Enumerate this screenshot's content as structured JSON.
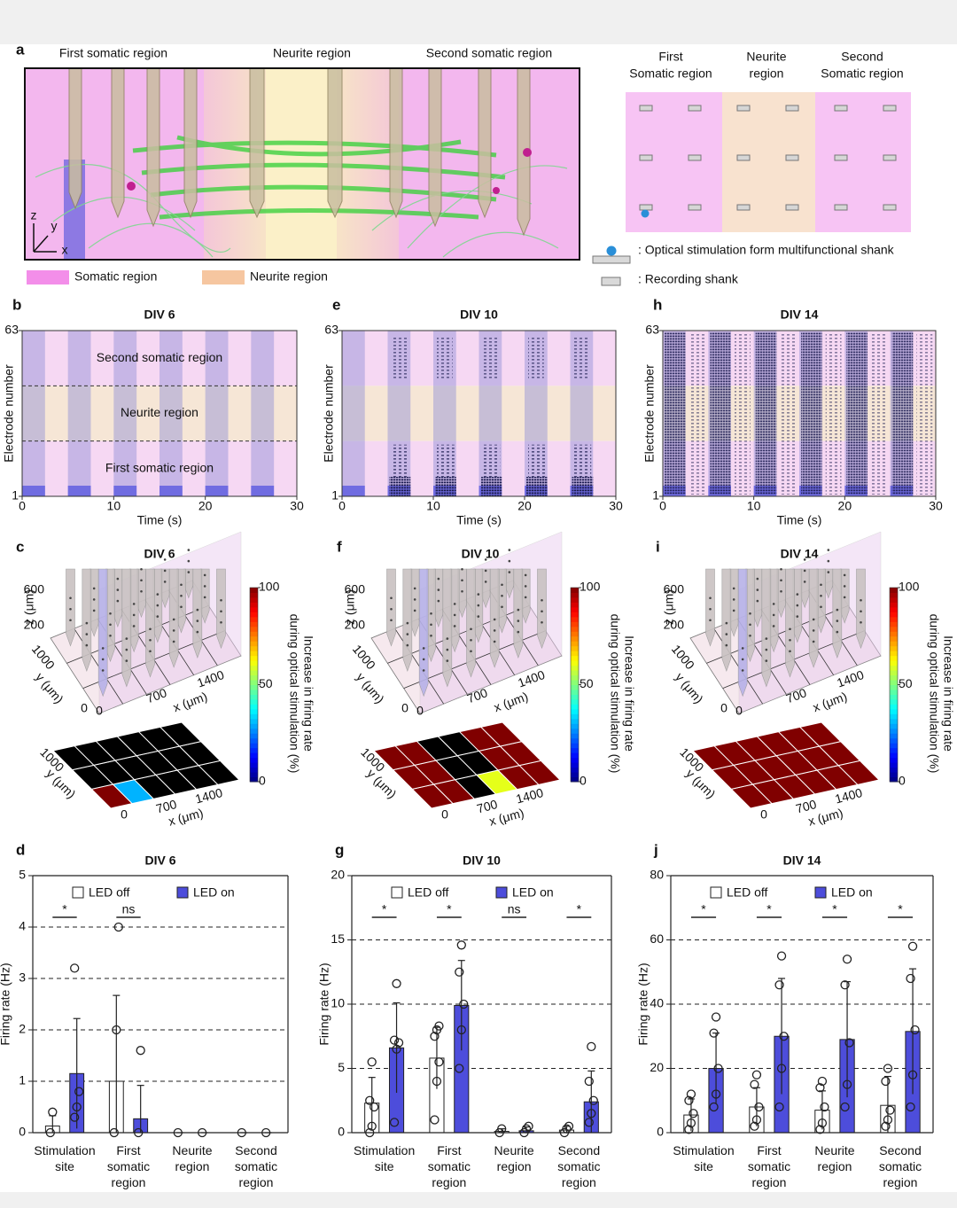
{
  "panel_a": {
    "letter": "a",
    "region_titles": [
      "First somatic region",
      "Neurite region",
      "Second somatic region"
    ],
    "axis_letters": [
      "z",
      "y",
      "x"
    ],
    "legend": [
      "Somatic region",
      "Neurite region"
    ],
    "schematic_titles": [
      [
        "First",
        "Somatic region"
      ],
      [
        "Neurite",
        "region"
      ],
      [
        "Second",
        "Somatic region"
      ]
    ],
    "schematic_legend": [
      ": Optical stimulation form multifunctional shank",
      ": Recording shank"
    ]
  },
  "rasters": [
    {
      "letter": "b",
      "title": "DIV 6",
      "ylabel": "Electrode number",
      "xlabel": "Time (s)",
      "xlim": [
        0,
        30
      ],
      "xticks": [
        0,
        10,
        20,
        30
      ],
      "ylim": [
        1,
        63
      ],
      "yticks": [
        1,
        63
      ],
      "region_labels": [
        "Second somatic region",
        "Neurite region",
        "First somatic region"
      ]
    },
    {
      "letter": "e",
      "title": "DIV 10",
      "ylabel": "Electrode number",
      "xlabel": "Time (s)",
      "xlim": [
        0,
        30
      ],
      "xticks": [
        0,
        10,
        20,
        30
      ],
      "ylim": [
        1,
        63
      ],
      "yticks": [
        1,
        63
      ]
    },
    {
      "letter": "h",
      "title": "DIV 14",
      "ylabel": "Electrode number",
      "xlabel": "Time (s)",
      "xlim": [
        0,
        30
      ],
      "xticks": [
        0,
        10,
        20,
        30
      ],
      "ylim": [
        1,
        63
      ],
      "yticks": [
        1,
        63
      ]
    }
  ],
  "maps": [
    {
      "letter": "c",
      "title": "DIV 6",
      "zlabel": "z (μm)",
      "zticks": [
        600,
        200
      ],
      "ylabel": "y (μm)",
      "yticks": [
        1000,
        0
      ],
      "xlabel": "x (μm)",
      "xticks": [
        0,
        700,
        1400
      ],
      "cbar_label": [
        "Increase in firing rate",
        "during optical stimulation (%)"
      ],
      "clim": [
        0,
        100
      ],
      "cticks": [
        0,
        50,
        100
      ],
      "heatmap": [
        [
          100,
          30,
          null,
          null,
          null,
          null
        ],
        [
          null,
          null,
          null,
          null,
          null,
          null
        ],
        [
          null,
          null,
          null,
          null,
          null,
          null
        ]
      ]
    },
    {
      "letter": "f",
      "title": "DIV 10",
      "zlabel": "z (μm)",
      "zticks": [
        600,
        200
      ],
      "ylabel": "y (μm)",
      "yticks": [
        1000,
        0
      ],
      "xlabel": "x (μm)",
      "xticks": [
        0,
        700,
        1400
      ],
      "cbar_label": [
        "Increase in firing rate",
        "during optical stimulation (%)"
      ],
      "clim": [
        0,
        100
      ],
      "cticks": [
        0,
        50,
        100
      ],
      "heatmap": [
        [
          100,
          100,
          null,
          60,
          100,
          100
        ],
        [
          100,
          100,
          null,
          null,
          100,
          100
        ],
        [
          100,
          100,
          null,
          null,
          100,
          100
        ]
      ]
    },
    {
      "letter": "i",
      "title": "DIV 14",
      "zlabel": "z (μm)",
      "zticks": [
        600,
        200
      ],
      "ylabel": "y (μm)",
      "yticks": [
        1000,
        0
      ],
      "xlabel": "x (μm)",
      "xticks": [
        0,
        700,
        1400
      ],
      "cbar_label": [
        "Increase in firing rate",
        "during optical stimulation (%)"
      ],
      "clim": [
        0,
        100
      ],
      "cticks": [
        0,
        50,
        100
      ],
      "heatmap": [
        [
          100,
          100,
          100,
          100,
          100,
          100
        ],
        [
          100,
          100,
          100,
          100,
          100,
          100
        ],
        [
          100,
          100,
          100,
          100,
          100,
          100
        ]
      ]
    }
  ],
  "chart_data": [
    {
      "type": "bar",
      "letter": "d",
      "title": "DIV 6",
      "ylabel": "Firing rate (Hz)",
      "categories": [
        "Stimulation site",
        "First somatic region",
        "Neurite region",
        "Second somatic region"
      ],
      "ylim": [
        0,
        5
      ],
      "yticks": [
        0,
        1,
        2,
        3,
        4,
        5
      ],
      "grid": true,
      "series": [
        {
          "name": "LED off",
          "color": "#ffffff",
          "values": [
            0.13,
            1.0,
            0,
            0
          ],
          "errors": [
            0.2,
            1.67,
            0,
            0
          ],
          "points": [
            [
              0,
              0.4
            ],
            [
              0,
              2,
              4
            ],
            [
              0
            ],
            [
              0
            ]
          ]
        },
        {
          "name": "LED on",
          "color": "#4d4ddb",
          "values": [
            1.15,
            0.27,
            0,
            0
          ],
          "errors": [
            1.07,
            0.65,
            0,
            0
          ],
          "points": [
            [
              0.3,
              0.5,
              0.8,
              3.2
            ],
            [
              0,
              1.6
            ],
            [
              0
            ],
            [
              0
            ]
          ]
        }
      ],
      "significance": [
        {
          "index": 0,
          "label": "*"
        },
        {
          "index": 1,
          "label": "ns"
        }
      ]
    },
    {
      "type": "bar",
      "letter": "g",
      "title": "DIV 10",
      "ylabel": "Firing rate (Hz)",
      "categories": [
        "Stimulation site",
        "First somatic region",
        "Neurite region",
        "Second somatic region"
      ],
      "ylim": [
        0,
        20
      ],
      "yticks": [
        0,
        5,
        10,
        15,
        20
      ],
      "grid": true,
      "series": [
        {
          "name": "LED off",
          "color": "#ffffff",
          "values": [
            2.3,
            5.8,
            0.1,
            0.2
          ],
          "errors": [
            2.0,
            2.4,
            0.2,
            0.3
          ],
          "points": [
            [
              0,
              0.5,
              2,
              2.5,
              5.5
            ],
            [
              1,
              4,
              5.5,
              7.5,
              8,
              8.3
            ],
            [
              0,
              0.3
            ],
            [
              0,
              0.3,
              0.5
            ]
          ]
        },
        {
          "name": "LED on",
          "color": "#4d4ddb",
          "values": [
            6.6,
            9.9,
            0.15,
            2.4
          ],
          "errors": [
            3.5,
            3.5,
            0.3,
            2.4
          ],
          "points": [
            [
              0.8,
              6.5,
              7,
              7.2,
              11.6
            ],
            [
              5,
              8,
              10,
              12.5,
              14.6
            ],
            [
              0,
              0.3,
              0.5
            ],
            [
              0.8,
              1.5,
              2.5,
              4,
              6.7
            ]
          ]
        }
      ],
      "significance": [
        {
          "index": 0,
          "label": "*"
        },
        {
          "index": 1,
          "label": "*"
        },
        {
          "index": 2,
          "label": "ns"
        },
        {
          "index": 3,
          "label": "*"
        }
      ]
    },
    {
      "type": "bar",
      "letter": "j",
      "title": "DIV 14",
      "ylabel": "Firing rate (Hz)",
      "categories": [
        "Stimulation site",
        "First somatic region",
        "Neurite region",
        "Second somatic region"
      ],
      "ylim": [
        0,
        80
      ],
      "yticks": [
        0,
        20,
        40,
        60,
        80
      ],
      "grid": true,
      "series": [
        {
          "name": "LED off",
          "color": "#ffffff",
          "values": [
            5.5,
            8,
            7,
            8.5
          ],
          "errors": [
            5,
            6,
            6,
            9
          ],
          "points": [
            [
              1,
              3,
              6,
              10,
              12
            ],
            [
              2,
              4,
              8,
              15,
              18
            ],
            [
              1,
              3,
              8,
              14,
              16
            ],
            [
              2,
              4,
              7,
              16,
              20
            ]
          ]
        },
        {
          "name": "LED on",
          "color": "#4d4ddb",
          "values": [
            20,
            30,
            29,
            31.5
          ],
          "errors": [
            11,
            18,
            18,
            19.5
          ],
          "points": [
            [
              8,
              12,
              20,
              31,
              36
            ],
            [
              8,
              20,
              30,
              46,
              55
            ],
            [
              8,
              15,
              28,
              46,
              54
            ],
            [
              8,
              18,
              32,
              48,
              58
            ]
          ]
        }
      ],
      "significance": [
        {
          "index": 0,
          "label": "*"
        },
        {
          "index": 1,
          "label": "*"
        },
        {
          "index": 2,
          "label": "*"
        },
        {
          "index": 3,
          "label": "*"
        }
      ]
    }
  ]
}
